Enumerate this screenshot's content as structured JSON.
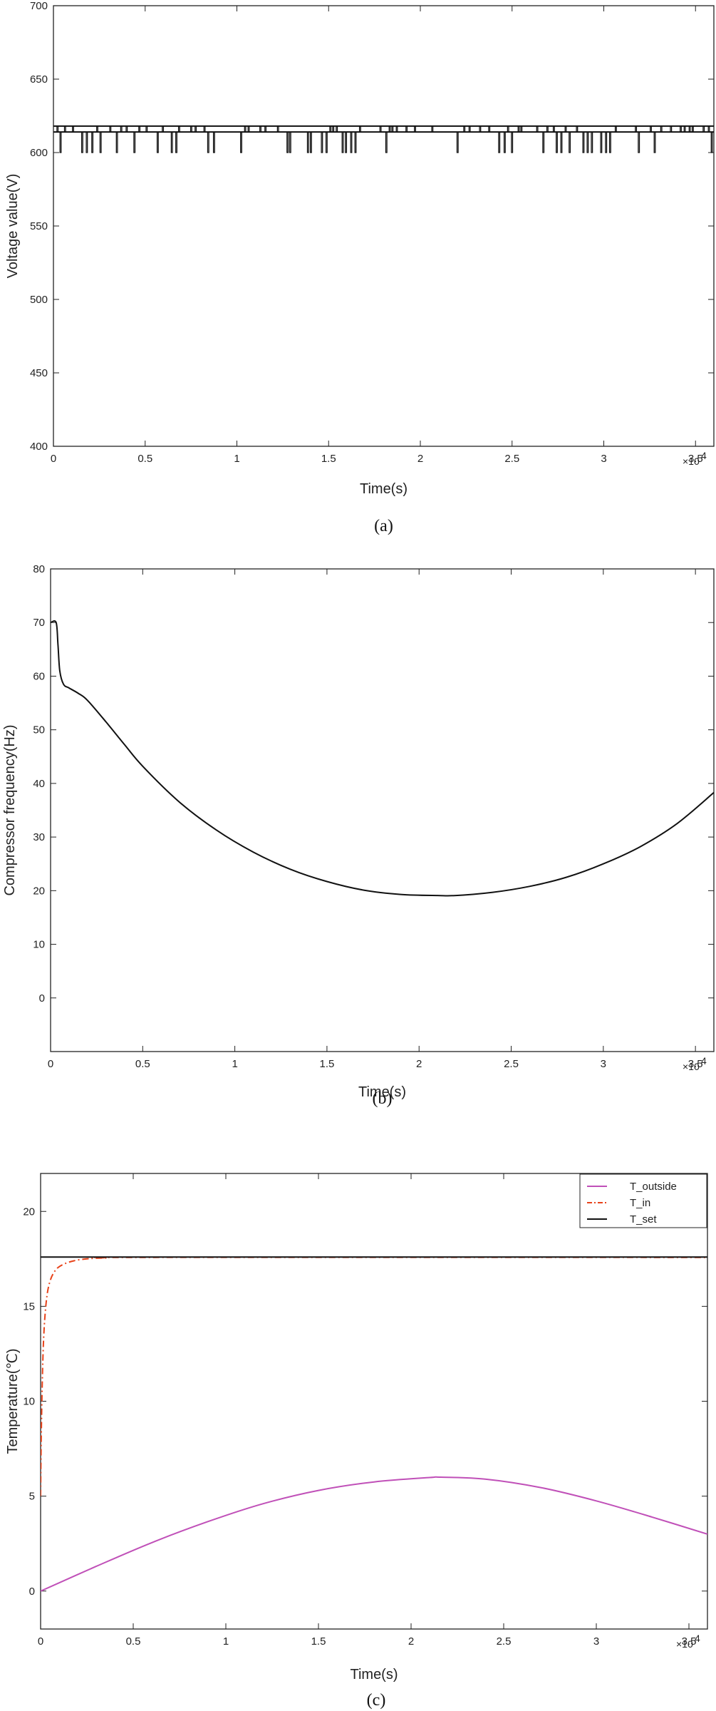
{
  "chart_data": [
    {
      "type": "line",
      "caption": "(a)",
      "xlabel": "Time(s)",
      "ylabel": "Voltage value(V)",
      "x_multiplier": "×10",
      "x_exponent": "4",
      "xlim": [
        0,
        36000
      ],
      "ylim": [
        400,
        700
      ],
      "xticks": [
        0,
        5000,
        10000,
        15000,
        20000,
        25000,
        30000,
        35000
      ],
      "xtick_labels": [
        "0",
        "0.5",
        "1",
        "1.5",
        "2",
        "2.5",
        "3",
        "3.5"
      ],
      "yticks": [
        400,
        450,
        500,
        550,
        600,
        650,
        700
      ],
      "ytick_labels": [
        "400",
        "450",
        "500",
        "550",
        "600",
        "650",
        "700"
      ],
      "grid": false,
      "series": [
        {
          "color": "#111111",
          "baseline": 614,
          "upper_level": 618,
          "lower_level": 600,
          "x_range": [
            0,
            36000
          ]
        }
      ]
    },
    {
      "type": "line",
      "caption": "(b)",
      "xlabel": "Time(s)",
      "ylabel": "Compressor frequency(Hz)",
      "x_multiplier": "×10",
      "x_exponent": "4",
      "xlim": [
        0,
        36000
      ],
      "ylim": [
        -10,
        80
      ],
      "xticks": [
        0,
        5000,
        10000,
        15000,
        20000,
        25000,
        30000,
        35000
      ],
      "xtick_labels": [
        "0",
        "0.5",
        "1",
        "1.5",
        "2",
        "2.5",
        "3",
        "3.5"
      ],
      "yticks": [
        0,
        10,
        20,
        30,
        40,
        50,
        60,
        70,
        80
      ],
      "ytick_labels": [
        "0",
        "10",
        "20",
        "30",
        "40",
        "50",
        "60",
        "70",
        "80"
      ],
      "grid": false,
      "series": [
        {
          "color": "#111111",
          "x": [
            0,
            300,
            400,
            500,
            700,
            1000,
            1500,
            2000,
            3000,
            4000,
            5000,
            7000,
            9000,
            11000,
            13000,
            15000,
            17000,
            19000,
            21000,
            22000,
            24000,
            26000,
            28000,
            30000,
            32000,
            34000,
            36000
          ],
          "y": [
            70,
            70,
            66,
            61,
            58.5,
            57.8,
            56.8,
            55.5,
            51.5,
            47.3,
            43.2,
            36.5,
            31.3,
            27.2,
            24.0,
            21.7,
            20.1,
            19.3,
            19.1,
            19.1,
            19.7,
            20.8,
            22.5,
            25.0,
            28.2,
            32.5,
            38.3
          ]
        }
      ]
    },
    {
      "type": "line",
      "caption": "(c)",
      "xlabel": "Time(s)",
      "ylabel": "Temperature(℃)",
      "x_multiplier": "×10",
      "x_exponent": "4",
      "xlim": [
        0,
        36000
      ],
      "ylim": [
        -2,
        22
      ],
      "xticks": [
        0,
        5000,
        10000,
        15000,
        20000,
        25000,
        30000,
        35000
      ],
      "xtick_labels": [
        "0",
        "0.5",
        "1",
        "1.5",
        "2",
        "2.5",
        "3",
        "3.5"
      ],
      "yticks": [
        0,
        5,
        10,
        15,
        20
      ],
      "ytick_labels": [
        "0",
        "5",
        "10",
        "15",
        "20"
      ],
      "grid": false,
      "legend_position": "top-right",
      "series": [
        {
          "name": "T_outside",
          "color": "#c050b8",
          "style": "solid",
          "x": [
            0,
            3000,
            6000,
            9000,
            12000,
            15000,
            18000,
            21000,
            21600,
            24000,
            27000,
            30000,
            33000,
            36000
          ],
          "y": [
            0,
            1.3,
            2.55,
            3.65,
            4.6,
            5.3,
            5.75,
            5.98,
            6.0,
            5.9,
            5.45,
            4.75,
            3.9,
            3.0
          ]
        },
        {
          "name": "T_in",
          "color": "#e8431a",
          "style": "dashdot",
          "x": [
            0,
            50,
            150,
            300,
            500,
            800,
            1200,
            1800,
            2500,
            3500,
            6000,
            36000
          ],
          "y": [
            5,
            9,
            13,
            15.2,
            16.3,
            16.9,
            17.2,
            17.4,
            17.5,
            17.55,
            17.58,
            17.58
          ]
        },
        {
          "name": "T_set",
          "color": "#111111",
          "style": "solid",
          "x": [
            0,
            36000
          ],
          "y": [
            17.6,
            17.6
          ]
        }
      ]
    }
  ]
}
